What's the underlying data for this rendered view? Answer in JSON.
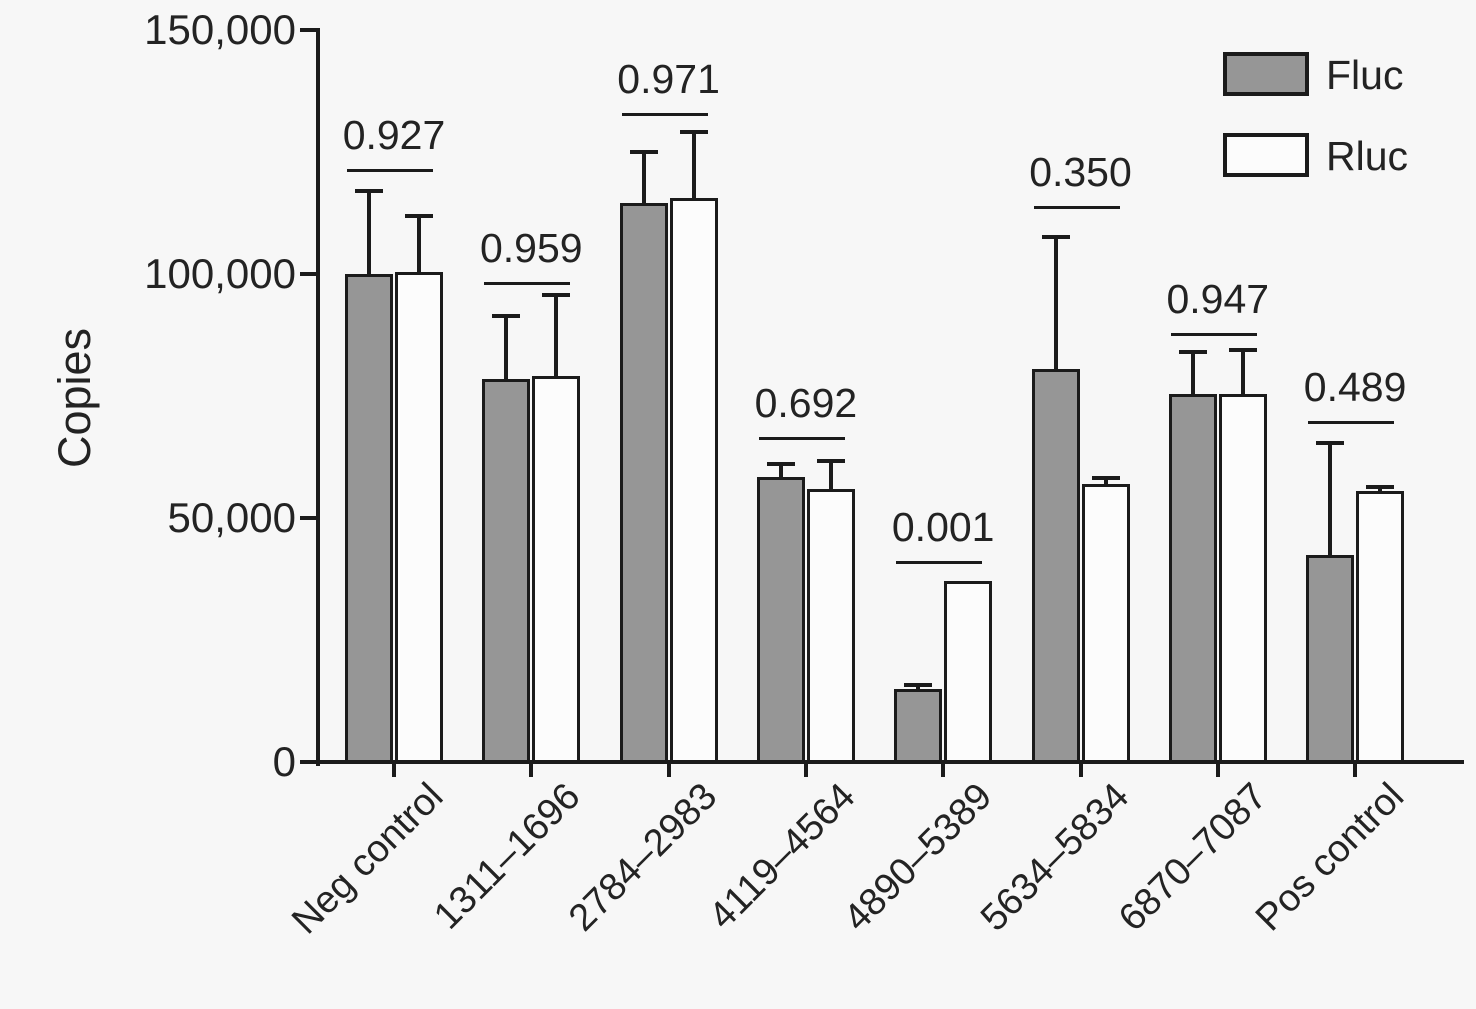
{
  "figure": {
    "background_color": "#f7f7f7",
    "axis_color": "#1b1b1b",
    "text_color": "#232323"
  },
  "chart_data": {
    "type": "bar",
    "title": "",
    "xlabel": "",
    "ylabel": "Copies",
    "ylim": [
      0,
      150000
    ],
    "grid": false,
    "legend_position": "top-right",
    "yticks": [
      {
        "value": 0,
        "label": "0"
      },
      {
        "value": 50000,
        "label": "50,000"
      },
      {
        "value": 100000,
        "label": "100,000"
      },
      {
        "value": 150000,
        "label": "150,000"
      }
    ],
    "categories": [
      "Neg control",
      "1311–1696",
      "2784–2983",
      "4119–4564",
      "4890–5389",
      "5634–5834",
      "6870–7087",
      "Pos control"
    ],
    "series": [
      {
        "name": "Fluc",
        "fill": "#969696",
        "values": [
          100000,
          78500,
          114500,
          58500,
          15000,
          80500,
          75500,
          42500
        ],
        "errors": [
          17000,
          12800,
          10500,
          2500,
          800,
          27000,
          8600,
          22800
        ]
      },
      {
        "name": "Rluc",
        "fill": "#fcfcfc",
        "values": [
          100500,
          79000,
          115500,
          56000,
          37000,
          57000,
          75500,
          55500
        ],
        "errors": [
          11300,
          16600,
          13500,
          5700,
          0,
          1100,
          9000,
          800
        ]
      }
    ],
    "p_values": [
      "0.927",
      "0.959",
      "0.971",
      "0.692",
      "0.001",
      "0.350",
      "0.947",
      "0.489"
    ],
    "sig_line_values": [
      121500,
      98300,
      133000,
      66500,
      41200,
      114000,
      88000,
      69800
    ]
  }
}
